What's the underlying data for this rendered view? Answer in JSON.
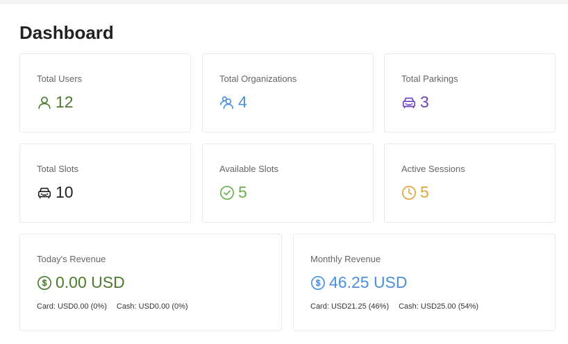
{
  "title": "Dashboard",
  "stats": [
    {
      "label": "Total Users",
      "value": "12",
      "icon": "user-icon",
      "color": "#4a7a2c"
    },
    {
      "label": "Total Organizations",
      "value": "4",
      "icon": "users-icon",
      "color": "#4a8fe0"
    },
    {
      "label": "Total Parkings",
      "value": "3",
      "icon": "car-icon",
      "color": "#6a3fc0"
    },
    {
      "label": "Total Slots",
      "value": "10",
      "icon": "car-icon",
      "color": "#222222"
    },
    {
      "label": "Available Slots",
      "value": "5",
      "icon": "check-circle-icon",
      "color": "#6ab04c"
    },
    {
      "label": "Active Sessions",
      "value": "5",
      "icon": "clock-icon",
      "color": "#e0a43a"
    }
  ],
  "revenue": [
    {
      "label": "Today's Revenue",
      "value": "0.00 USD",
      "card": "Card: USD0.00 (0%)",
      "cash": "Cash: USD0.00 (0%)",
      "icon": "dollar-circle-icon",
      "color": "#4a7a2c"
    },
    {
      "label": "Monthly Revenue",
      "value": "46.25 USD",
      "card": "Card: USD21.25 (46%)",
      "cash": "Cash: USD25.00 (54%)",
      "icon": "dollar-circle-icon",
      "color": "#4a8fe0"
    }
  ]
}
